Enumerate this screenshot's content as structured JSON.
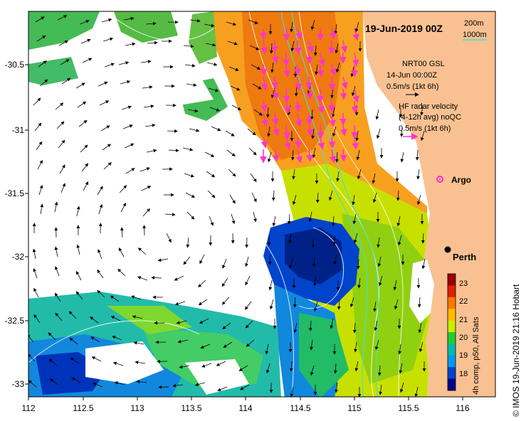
{
  "title": "19-Jun-2019 00Z",
  "scale_legend": {
    "contour1": "200m",
    "contour2": "1000m"
  },
  "legend": {
    "model_line1": "NRT00 GSL",
    "model_line2": "14-Jun 00:00Z",
    "model_line3": "0.5m/s (1kt 6h)",
    "radar_line1": "HF radar velocity",
    "radar_line2": "(4-12h avg) noQC",
    "radar_line3": "0.5m/s (1kt 6h)"
  },
  "markers": {
    "argo_label": "Argo",
    "city_label": "Perth"
  },
  "axes": {
    "x_ticks": [
      "112",
      "112.5",
      "113",
      "113.5",
      "114",
      "114.5",
      "115",
      "115.5",
      "116"
    ],
    "y_ticks": [
      "-30.5",
      "-31",
      "-31.5",
      "-32",
      "-32.5",
      "-33"
    ]
  },
  "colorbar": {
    "label": "4h comp, p50, All Sats",
    "ticks": [
      "23",
      "22",
      "21",
      "20",
      "19",
      "18"
    ],
    "colors": [
      "#990000",
      "#dd2200",
      "#ff7700",
      "#ffbb00",
      "#ccee00",
      "#22cc33",
      "#00bbaa",
      "#0099ee",
      "#0044cc",
      "#00008b"
    ]
  },
  "credit": "© IMOS 19-Jun-2019 21:16 Hobart",
  "colors": {
    "land": "#f9c191",
    "accent": "#ff33cc",
    "contour": "#40e0d0"
  }
}
